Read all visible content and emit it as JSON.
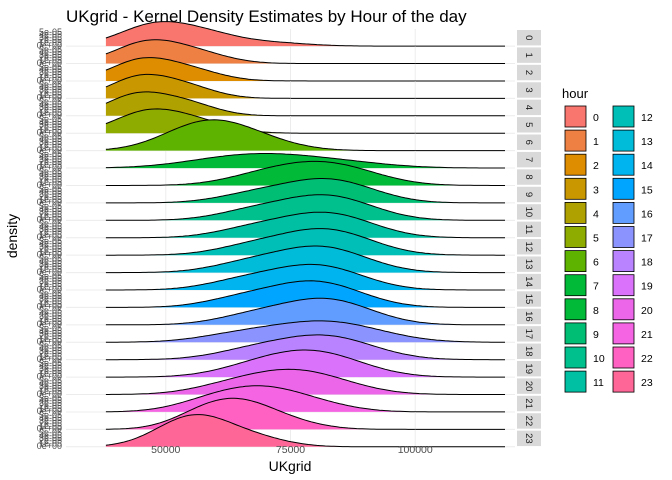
{
  "chart_data": {
    "type": "area",
    "title": "UKgrid - Kernel Density Estimates by Hour of the day",
    "xlabel": "UKgrid",
    "ylabel": "density",
    "xlim": [
      30000,
      120000
    ],
    "x_ticks": [
      50000,
      75000,
      100000
    ],
    "x_tick_labels": [
      "50000",
      "75000",
      "100000"
    ],
    "y_tick_labels": [
      "5e-05",
      "4e-05",
      "3e-05",
      "2e-05",
      "1e-05",
      "0e+00"
    ],
    "grid": true,
    "facet_by": "hour",
    "legend": {
      "title": "hour",
      "placement": "right",
      "columns": 2
    },
    "series": [
      {
        "name": "0",
        "color": "#F8766D",
        "peaks": [
          [
            47500,
            1.0
          ],
          [
            58000,
            0.55
          ],
          [
            72000,
            0.15
          ]
        ],
        "width": 7000
      },
      {
        "name": "1",
        "color": "#EE8044",
        "peaks": [
          [
            46000,
            1.0
          ],
          [
            56000,
            0.5
          ]
        ],
        "width": 6500
      },
      {
        "name": "2",
        "color": "#DE8C00",
        "peaks": [
          [
            45000,
            1.0
          ],
          [
            55000,
            0.5
          ]
        ],
        "width": 6200
      },
      {
        "name": "3",
        "color": "#C99800",
        "peaks": [
          [
            44500,
            1.0
          ],
          [
            54000,
            0.55
          ]
        ],
        "width": 6000
      },
      {
        "name": "4",
        "color": "#AFA100",
        "peaks": [
          [
            44000,
            1.0
          ],
          [
            54000,
            0.6
          ]
        ],
        "width": 6000
      },
      {
        "name": "5",
        "color": "#8EAB00",
        "peaks": [
          [
            46000,
            1.0
          ],
          [
            56000,
            0.55
          ]
        ],
        "width": 6500
      },
      {
        "name": "6",
        "color": "#5EB300",
        "peaks": [
          [
            55000,
            0.8
          ],
          [
            62000,
            0.8
          ],
          [
            70000,
            0.3
          ]
        ],
        "width": 7500
      },
      {
        "name": "7",
        "color": "#00BA38",
        "peaks": [
          [
            62000,
            0.35
          ],
          [
            72000,
            0.4
          ],
          [
            85000,
            0.25
          ]
        ],
        "width": 10000
      },
      {
        "name": "8",
        "color": "#00BA38",
        "peaks": [
          [
            70000,
            0.5
          ],
          [
            80000,
            0.7
          ],
          [
            88000,
            0.45
          ]
        ],
        "width": 8000
      },
      {
        "name": "9",
        "color": "#00BF74",
        "peaks": [
          [
            68000,
            0.45
          ],
          [
            80000,
            0.8
          ],
          [
            88000,
            0.5
          ]
        ],
        "width": 7500
      },
      {
        "name": "10",
        "color": "#00C08D",
        "peaks": [
          [
            68000,
            0.5
          ],
          [
            80000,
            0.85
          ],
          [
            88000,
            0.5
          ]
        ],
        "width": 7500
      },
      {
        "name": "11",
        "color": "#00C0A3",
        "peaks": [
          [
            68000,
            0.5
          ],
          [
            80000,
            0.85
          ],
          [
            88000,
            0.5
          ]
        ],
        "width": 7500
      },
      {
        "name": "12",
        "color": "#00BFB7",
        "peaks": [
          [
            68000,
            0.5
          ],
          [
            80000,
            0.9
          ],
          [
            88000,
            0.5
          ]
        ],
        "width": 7500
      },
      {
        "name": "13",
        "color": "#00BCD8",
        "peaks": [
          [
            67000,
            0.5
          ],
          [
            79000,
            0.9
          ],
          [
            87000,
            0.5
          ]
        ],
        "width": 7500
      },
      {
        "name": "14",
        "color": "#00B4EF",
        "peaks": [
          [
            66000,
            0.5
          ],
          [
            78000,
            0.85
          ],
          [
            86000,
            0.5
          ]
        ],
        "width": 7500
      },
      {
        "name": "15",
        "color": "#00A5FF",
        "peaks": [
          [
            66000,
            0.5
          ],
          [
            78000,
            0.9
          ],
          [
            86000,
            0.5
          ]
        ],
        "width": 7500
      },
      {
        "name": "16",
        "color": "#619CFF",
        "peaks": [
          [
            68000,
            0.5
          ],
          [
            80000,
            0.9
          ],
          [
            88000,
            0.5
          ]
        ],
        "width": 7500
      },
      {
        "name": "17",
        "color": "#8B93FF",
        "peaks": [
          [
            66000,
            0.45
          ],
          [
            80000,
            0.75
          ],
          [
            90000,
            0.4
          ]
        ],
        "width": 8500
      },
      {
        "name": "18",
        "color": "#B983FF",
        "peaks": [
          [
            68000,
            0.5
          ],
          [
            80000,
            0.8
          ],
          [
            88000,
            0.45
          ]
        ],
        "width": 8000
      },
      {
        "name": "19",
        "color": "#DB72FB",
        "peaks": [
          [
            68000,
            0.5
          ],
          [
            78000,
            0.85
          ],
          [
            86000,
            0.45
          ]
        ],
        "width": 8000
      },
      {
        "name": "20",
        "color": "#EB66E9",
        "peaks": [
          [
            64000,
            0.5
          ],
          [
            75000,
            0.85
          ],
          [
            84000,
            0.4
          ]
        ],
        "width": 8000
      },
      {
        "name": "21",
        "color": "#F564E3",
        "peaks": [
          [
            60000,
            0.6
          ],
          [
            70000,
            0.9
          ],
          [
            80000,
            0.35
          ]
        ],
        "width": 7500
      },
      {
        "name": "22",
        "color": "#FF61C3",
        "peaks": [
          [
            58000,
            0.8
          ],
          [
            66000,
            1.0
          ],
          [
            75000,
            0.3
          ]
        ],
        "width": 6500
      },
      {
        "name": "23",
        "color": "#FF6698",
        "peaks": [
          [
            52000,
            0.7
          ],
          [
            58000,
            1.0
          ],
          [
            68000,
            0.4
          ]
        ],
        "width": 6500
      }
    ]
  }
}
